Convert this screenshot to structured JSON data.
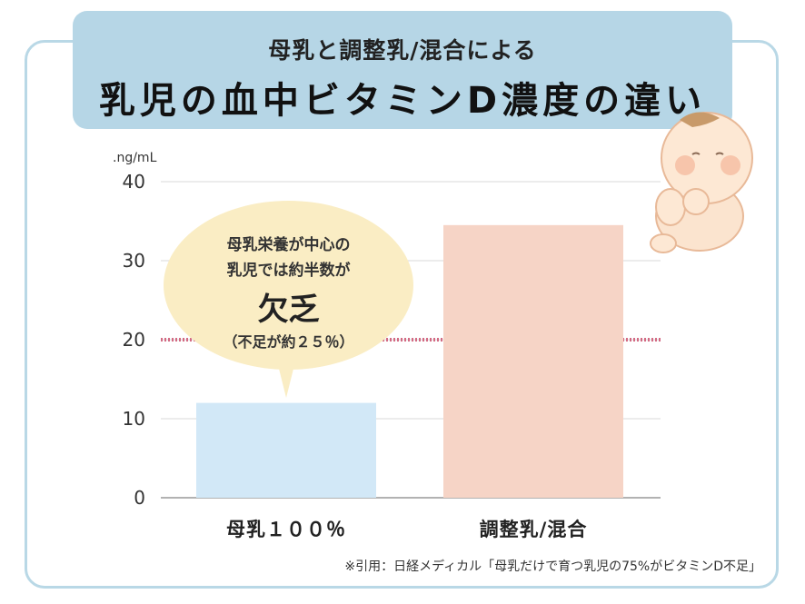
{
  "header": {
    "subtitle": "母乳と調整乳/混合による",
    "title": "乳児の血中ビタミンD濃度の違い"
  },
  "bubble": {
    "line1": "母乳栄養が中心の",
    "line2": "乳児では約半数が",
    "emphasis": "欠乏",
    "line4": "（不足が約２５％）"
  },
  "source": "※引用：日経メディカル「母乳だけで育つ乳児の75%がビタミンD不足」",
  "colors": {
    "banner": "#b6d6e6",
    "bar_breastmilk": "#d2e8f7",
    "bar_formula": "#f6d4c6",
    "threshold_line": "#d36b84",
    "bubble": "#faedc4"
  },
  "chart_data": {
    "type": "bar",
    "categories": [
      "母乳１００％",
      "調整乳/混合"
    ],
    "values": [
      12,
      34.5
    ],
    "ylabel": ".ng/mL",
    "ylim": [
      0,
      40
    ],
    "yticks": [
      "0",
      "10",
      "20",
      "30",
      "40"
    ],
    "reference_line": 20,
    "grid": true
  }
}
